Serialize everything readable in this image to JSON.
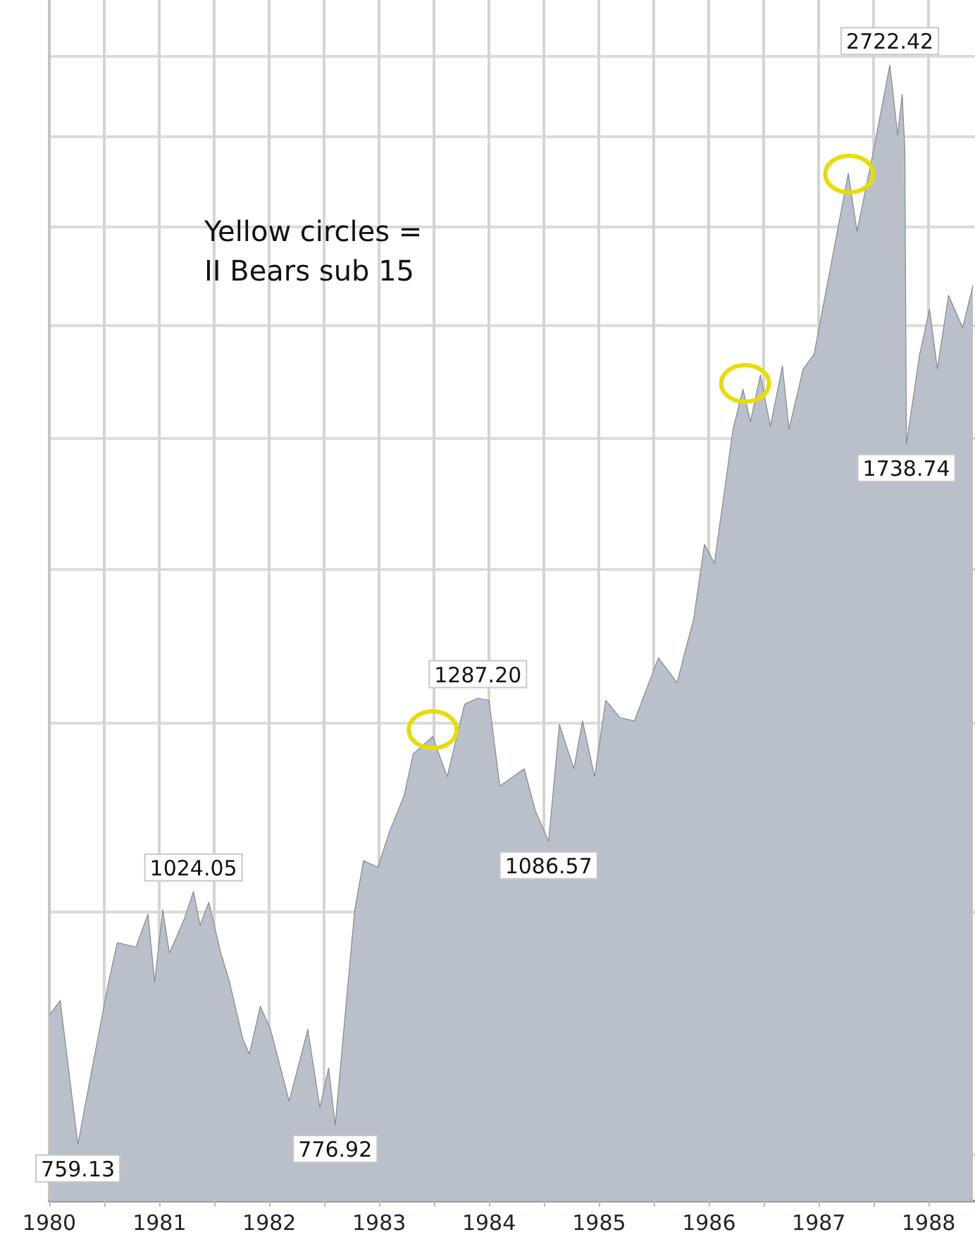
{
  "chart_data": {
    "type": "area",
    "x": [
      "1980-01-02",
      "1980-02-06",
      "1980-04-05",
      "1980-05-12",
      "1980-07-16",
      "1980-08-14",
      "1980-10-15",
      "1980-11-24",
      "1980-12-16",
      "1981-01-12",
      "1981-02-03",
      "1981-03-23",
      "1981-04-24",
      "1981-05-16",
      "1981-06-14",
      "1981-07-24",
      "1981-08-22",
      "1981-10-05",
      "1981-10-27",
      "1981-12-02",
      "1982-01-05",
      "1982-03-08",
      "1982-05-09",
      "1982-06-18",
      "1982-07-17",
      "1982-08-08",
      "1982-09-21",
      "1982-10-12",
      "1982-11-10",
      "1982-12-28",
      "1983-02-06",
      "1983-03-25",
      "1983-04-24",
      "1983-06-28",
      "1983-08-15",
      "1983-10-12",
      "1983-11-25",
      "1984-01-01",
      "1984-02-06",
      "1984-04-27",
      "1984-06-03",
      "1984-07-17",
      "1984-08-22",
      "1984-10-09",
      "1984-11-07",
      "1984-12-17",
      "1985-01-23",
      "1985-03-11",
      "1985-04-28",
      "1985-07-17",
      "1985-09-17",
      "1985-10-20",
      "1985-11-11",
      "1985-12-17",
      "1986-01-19",
      "1986-03-22",
      "1986-04-24",
      "1986-05-19",
      "1986-06-21",
      "1986-07-24",
      "1986-09-02",
      "1986-09-24",
      "1986-11-10",
      "1986-12-16",
      "1987-01-04",
      "1987-02-24",
      "1987-04-09",
      "1987-05-08",
      "1987-07-02",
      "1987-08-25",
      "1987-09-20",
      "1987-10-05",
      "1987-10-14",
      "1987-10-19",
      "1987-12-02",
      "1988-01-04",
      "1988-01-30",
      "1988-03-07",
      "1988-04-23",
      "1988-05-27"
    ],
    "values": [
      885,
      900,
      759.13,
      815,
      920,
      964,
      959,
      997,
      920,
      1002,
      952,
      990,
      1024.05,
      984,
      1011,
      952,
      920,
      860,
      845,
      894,
      870,
      799,
      870,
      793,
      831,
      776.92,
      924,
      1002,
      1062,
      1054,
      1101,
      1147,
      1205,
      1230,
      1173,
      1278,
      1287.2,
      1284,
      1160,
      1184,
      1127,
      1086.57,
      1248,
      1184,
      1253,
      1173,
      1284,
      1258,
      1253,
      1350,
      1311,
      1372,
      1413,
      1544,
      1510,
      1770,
      1855,
      1785,
      1887,
      1775,
      1907,
      1770,
      1900,
      1933,
      2003,
      2205,
      2395,
      2236,
      2461,
      2722.42,
      2506,
      2630,
      2461,
      1738.74,
      1933,
      2039,
      1900,
      2073,
      1995,
      2097
    ],
    "value_labels": [
      null,
      null,
      "759.13",
      null,
      null,
      null,
      null,
      null,
      null,
      null,
      null,
      null,
      "1024.05",
      null,
      null,
      null,
      null,
      null,
      null,
      null,
      null,
      null,
      null,
      null,
      null,
      "776.92",
      null,
      null,
      null,
      null,
      null,
      null,
      null,
      null,
      null,
      null,
      "1287.20",
      null,
      null,
      null,
      null,
      "1086.57",
      null,
      null,
      null,
      null,
      null,
      null,
      null,
      null,
      null,
      null,
      null,
      null,
      null,
      null,
      null,
      null,
      null,
      null,
      null,
      null,
      null,
      null,
      null,
      null,
      null,
      null,
      null,
      "2722.42",
      null,
      null,
      null,
      "1738.74",
      null,
      null,
      null,
      null,
      null,
      null
    ],
    "color": "#b9c0c9",
    "xlim": [
      "1980-01-01",
      "1988-06-03"
    ],
    "xticks": [
      {
        "value": "1980-01-01",
        "label": "1980"
      },
      {
        "value": "1980-07-01",
        "label": null
      },
      {
        "value": "1981-01-01",
        "label": "1981"
      },
      {
        "value": "1981-07-01",
        "label": null
      },
      {
        "value": "1982-01-01",
        "label": "1982"
      },
      {
        "value": "1982-07-01",
        "label": null
      },
      {
        "value": "1983-01-01",
        "label": "1983"
      },
      {
        "value": "1983-07-01",
        "label": null
      },
      {
        "value": "1984-01-01",
        "label": "1984"
      },
      {
        "value": "1984-07-01",
        "label": null
      },
      {
        "value": "1985-01-01",
        "label": "1985"
      },
      {
        "value": "1985-07-01",
        "label": null
      },
      {
        "value": "1986-01-01",
        "label": "1986"
      },
      {
        "value": "1986-07-01",
        "label": null
      },
      {
        "value": "1987-01-01",
        "label": "1987"
      },
      {
        "value": "1987-07-01",
        "label": null
      },
      {
        "value": "1988-01-01",
        "label": "1988"
      }
    ],
    "log": "y",
    "ylim": [
      710,
      2940
    ],
    "yticks": [
      {
        "value": 750,
        "label": null
      },
      {
        "value": 1000,
        "label": null
      },
      {
        "value": 1250,
        "label": null
      },
      {
        "value": 1500,
        "label": null
      },
      {
        "value": 1750,
        "label": null
      },
      {
        "value": 2000,
        "label": null
      },
      {
        "value": 2250,
        "label": null
      },
      {
        "value": 2500,
        "label": null
      },
      {
        "value": 2750,
        "label": null
      }
    ],
    "tick_labels": "x",
    "grid": true,
    "annotations": [
      "Yellow circles =\nII Bears sub 15"
    ]
  }
}
